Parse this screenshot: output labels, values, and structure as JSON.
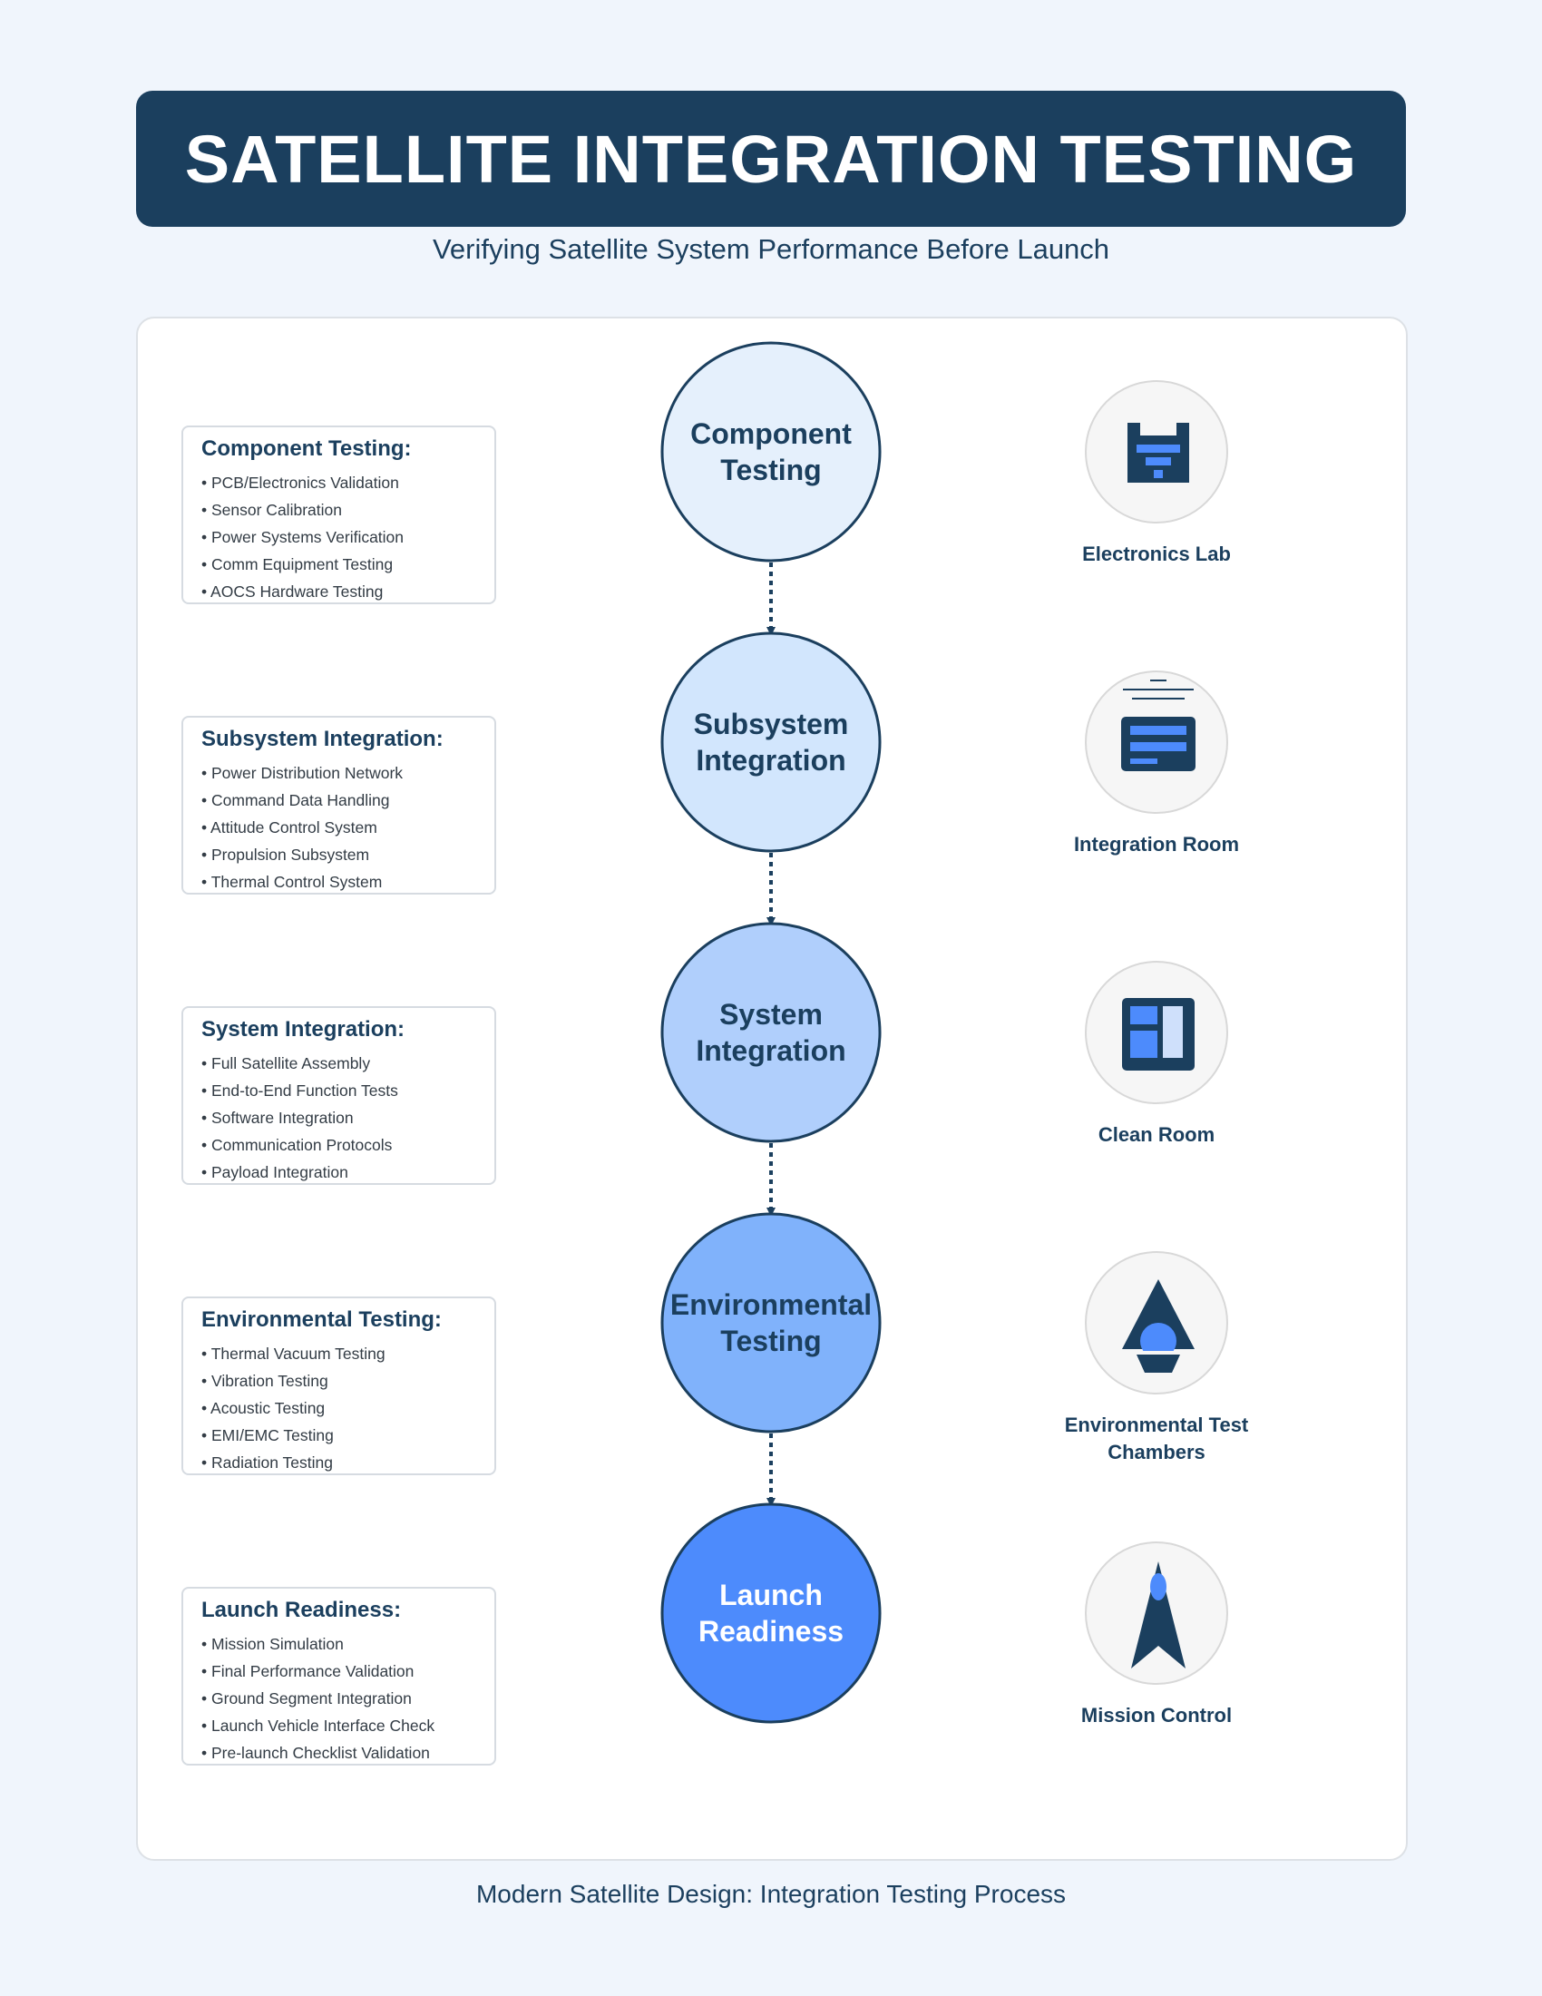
{
  "title": "SATELLITE INTEGRATION TESTING",
  "subtitle": "Verifying Satellite System Performance Before Launch",
  "footer": "Modern Satellite Design: Integration Testing Process",
  "colors": {
    "navy": "#1b3f5e",
    "stage_fills": [
      "#e5f0fc",
      "#d2e6fd",
      "#b0cffc",
      "#80b2fb",
      "#4d8bfc"
    ],
    "accent": "#4d8bfc"
  },
  "stages": [
    {
      "label_lines": [
        "Component",
        "Testing"
      ],
      "box_title": "Component Testing:",
      "items": [
        "PCB/Electronics Validation",
        "Sensor Calibration",
        "Power Systems Verification",
        "Comm Equipment Testing",
        "AOCS Hardware Testing"
      ],
      "facility_lines": [
        "Electronics Lab"
      ],
      "icon": "electronics-lab-icon"
    },
    {
      "label_lines": [
        "Subsystem",
        "Integration"
      ],
      "box_title": "Subsystem Integration:",
      "items": [
        "Power Distribution Network",
        "Command Data Handling",
        "Attitude Control System",
        "Propulsion Subsystem",
        "Thermal Control System"
      ],
      "facility_lines": [
        "Integration Room"
      ],
      "icon": "integration-room-icon"
    },
    {
      "label_lines": [
        "System",
        "Integration"
      ],
      "box_title": "System Integration:",
      "items": [
        "Full Satellite Assembly",
        "End-to-End Function Tests",
        "Software Integration",
        "Communication Protocols",
        "Payload Integration"
      ],
      "facility_lines": [
        "Clean Room"
      ],
      "icon": "clean-room-icon"
    },
    {
      "label_lines": [
        "Environmental",
        "Testing"
      ],
      "box_title": "Environmental Testing:",
      "items": [
        "Thermal Vacuum Testing",
        "Vibration Testing",
        "Acoustic Testing",
        "EMI/EMC Testing",
        "Radiation Testing"
      ],
      "facility_lines": [
        "Environmental Test",
        "Chambers"
      ],
      "icon": "environmental-chamber-icon"
    },
    {
      "label_lines": [
        "Launch",
        "Readiness"
      ],
      "box_title": "Launch Readiness:",
      "items": [
        "Mission Simulation",
        "Final Performance Validation",
        "Ground Segment Integration",
        "Launch Vehicle Interface Check",
        "Pre-launch Checklist Validation"
      ],
      "facility_lines": [
        "Mission Control"
      ],
      "icon": "mission-control-icon"
    }
  ]
}
